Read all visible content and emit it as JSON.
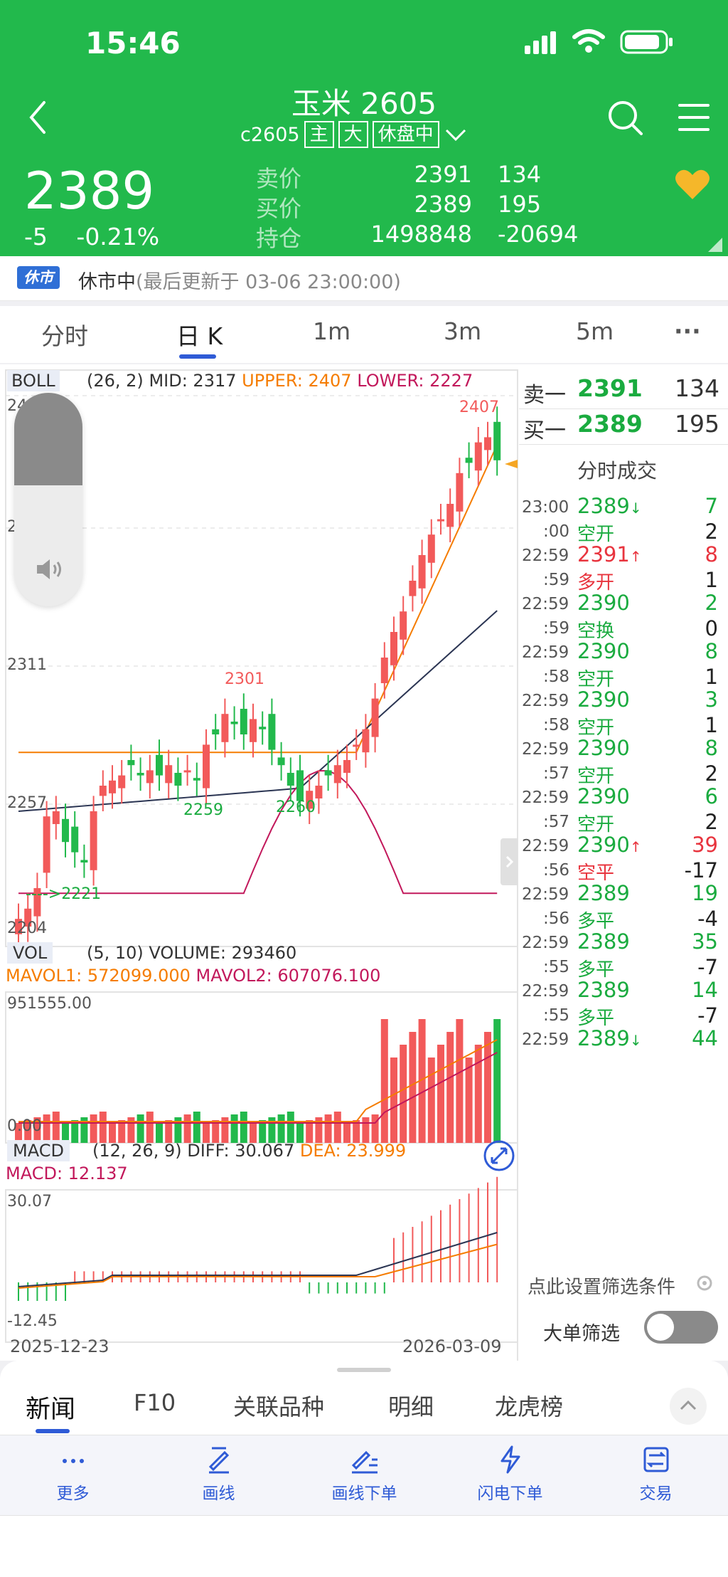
{
  "status_bar": {
    "time": "15:46"
  },
  "header": {
    "title": "玉米 2605",
    "code": "c2605",
    "tags": [
      "主",
      "大",
      "休盘中"
    ]
  },
  "quote": {
    "last_price": "2389",
    "change": "-5",
    "change_pct": "-0.21%",
    "rows": [
      {
        "label": "卖价",
        "value": "2391",
        "volume": "134"
      },
      {
        "label": "买价",
        "value": "2389",
        "volume": "195"
      },
      {
        "label": "持仓",
        "value": "1498848",
        "volume": "-20694"
      }
    ]
  },
  "notice": {
    "badge": "休市",
    "text": "休市中",
    "sub": "(最后更新于 03-06 23:00:00)"
  },
  "period_tabs": [
    "分时",
    "日 K",
    "1m",
    "3m",
    "5m",
    "···"
  ],
  "boll": {
    "label": "BOLL",
    "params": "(26, 2)",
    "mid": "MID: 2317",
    "upper": "UPPER: 2407",
    "lower": "LOWER: 2227"
  },
  "kline_labels": {
    "y_top": "24",
    "y_mid": "2",
    "y_2311": "2311",
    "y_2257": "2257",
    "y_2204": "2204",
    "high_label": "2407",
    "mark_2301": "2301",
    "mark_2259": "2259",
    "mark_2260": "2260",
    "low_label": "---->2221"
  },
  "vol": {
    "label": "VOL",
    "params": "(5, 10) VOLUME: 293460",
    "mavol1": "MAVOL1: 572099.000",
    "mavol2": "MAVOL2: 607076.100",
    "max": "951555.00",
    "zero": "0.00"
  },
  "macd": {
    "label": "MACD",
    "params": "(12, 26, 9) DIFF: 30.067",
    "dea": "DEA: 23.999",
    "macd": "MACD: 12.137",
    "max": "30.07",
    "min": "-12.45"
  },
  "date_axis": {
    "start": "2025-12-23",
    "end": "2026-03-09"
  },
  "order_book": {
    "sell_label": "卖一",
    "sell_price": "2391",
    "sell_vol": "134",
    "buy_label": "买一",
    "buy_price": "2389",
    "buy_vol": "195",
    "title": "分时成交"
  },
  "trades": [
    {
      "time": "23:00",
      "sec": ":00",
      "price": "2389",
      "dir": "↓",
      "vol": "7",
      "type": "空开",
      "oi": "2",
      "pc": "green",
      "vc": "green",
      "tc": "green"
    },
    {
      "time": "22:59",
      "sec": ":59",
      "price": "2391",
      "dir": "↑",
      "vol": "8",
      "type": "多开",
      "oi": "1",
      "pc": "red",
      "vc": "red",
      "tc": "red"
    },
    {
      "time": "22:59",
      "sec": ":59",
      "price": "2390",
      "dir": "",
      "vol": "2",
      "type": "空换",
      "oi": "0",
      "pc": "green",
      "vc": "green",
      "tc": "green"
    },
    {
      "time": "22:59",
      "sec": ":58",
      "price": "2390",
      "dir": "",
      "vol": "8",
      "type": "空开",
      "oi": "1",
      "pc": "green",
      "vc": "green",
      "tc": "green"
    },
    {
      "time": "22:59",
      "sec": ":58",
      "price": "2390",
      "dir": "",
      "vol": "3",
      "type": "空开",
      "oi": "1",
      "pc": "green",
      "vc": "green",
      "tc": "green"
    },
    {
      "time": "22:59",
      "sec": ":57",
      "price": "2390",
      "dir": "",
      "vol": "8",
      "type": "空开",
      "oi": "2",
      "pc": "green",
      "vc": "green",
      "tc": "green"
    },
    {
      "time": "22:59",
      "sec": ":57",
      "price": "2390",
      "dir": "",
      "vol": "6",
      "type": "空开",
      "oi": "2",
      "pc": "green",
      "vc": "green",
      "tc": "green"
    },
    {
      "time": "22:59",
      "sec": ":56",
      "price": "2390",
      "dir": "↑",
      "vol": "39",
      "type": "空平",
      "oi": "-17",
      "pc": "green",
      "vc": "red",
      "tc": "red"
    },
    {
      "time": "22:59",
      "sec": ":56",
      "price": "2389",
      "dir": "",
      "vol": "19",
      "type": "多平",
      "oi": "-4",
      "pc": "green",
      "vc": "green",
      "tc": "green"
    },
    {
      "time": "22:59",
      "sec": ":55",
      "price": "2389",
      "dir": "",
      "vol": "35",
      "type": "多平",
      "oi": "-7",
      "pc": "green",
      "vc": "green",
      "tc": "green"
    },
    {
      "time": "22:59",
      "sec": ":55",
      "price": "2389",
      "dir": "",
      "vol": "14",
      "type": "多平",
      "oi": "-7",
      "pc": "green",
      "vc": "green",
      "tc": "green"
    },
    {
      "time": "22:59",
      "sec": "",
      "price": "2389",
      "dir": "↓",
      "vol": "44",
      "type": "",
      "oi": "",
      "pc": "green",
      "vc": "green",
      "tc": "green"
    }
  ],
  "filter": {
    "setting": "点此设置筛选条件",
    "big_order": "大单筛选"
  },
  "bottom_tabs": [
    "新闻",
    "F10",
    "关联品种",
    "明细",
    "龙虎榜"
  ],
  "toolbar": [
    "更多",
    "画线",
    "画线下单",
    "闪电下单",
    "交易"
  ],
  "colors": {
    "brand_green": "#22b94c",
    "up": "#f25a5a",
    "down": "#22b94c",
    "accent_blue": "#2f5bd6"
  }
}
